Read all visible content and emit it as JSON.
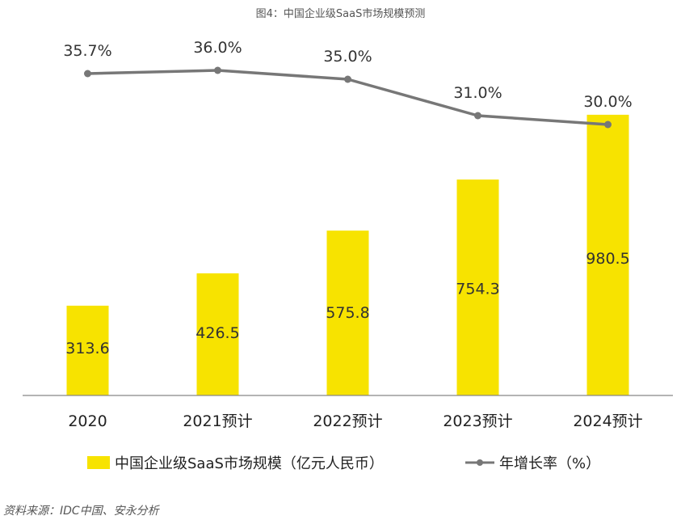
{
  "title": "图4：中国企业级SaaS市场规模预测",
  "source": "资料来源：IDC中国、安永分析",
  "colors": {
    "bar": "#f7e300",
    "line": "#777777",
    "axis": "#888888"
  },
  "chart_data": {
    "type": "bar",
    "title": "图4：中国企业级SaaS市场规模预测",
    "categories": [
      "2020",
      "2021预计",
      "2022预计",
      "2023预计",
      "2024预计"
    ],
    "series": [
      {
        "name": "中国企业级SaaS市场规模（亿元人民币）",
        "type": "bar",
        "values": [
          313.6,
          426.5,
          575.8,
          754.3,
          980.5
        ],
        "value_labels": [
          "313.6",
          "426.5",
          "575.8",
          "754.3",
          "980.5"
        ]
      },
      {
        "name": "年增长率（%）",
        "type": "line",
        "values": [
          35.7,
          36.0,
          35.0,
          31.0,
          30.0
        ],
        "value_labels": [
          "35.7%",
          "36.0%",
          "35.0%",
          "31.0%",
          "30.0%"
        ]
      }
    ],
    "legend": {
      "position": "bottom",
      "items": [
        "中国企业级SaaS市场规模（亿元人民币）",
        "年增长率（%）"
      ]
    },
    "grid": false
  }
}
